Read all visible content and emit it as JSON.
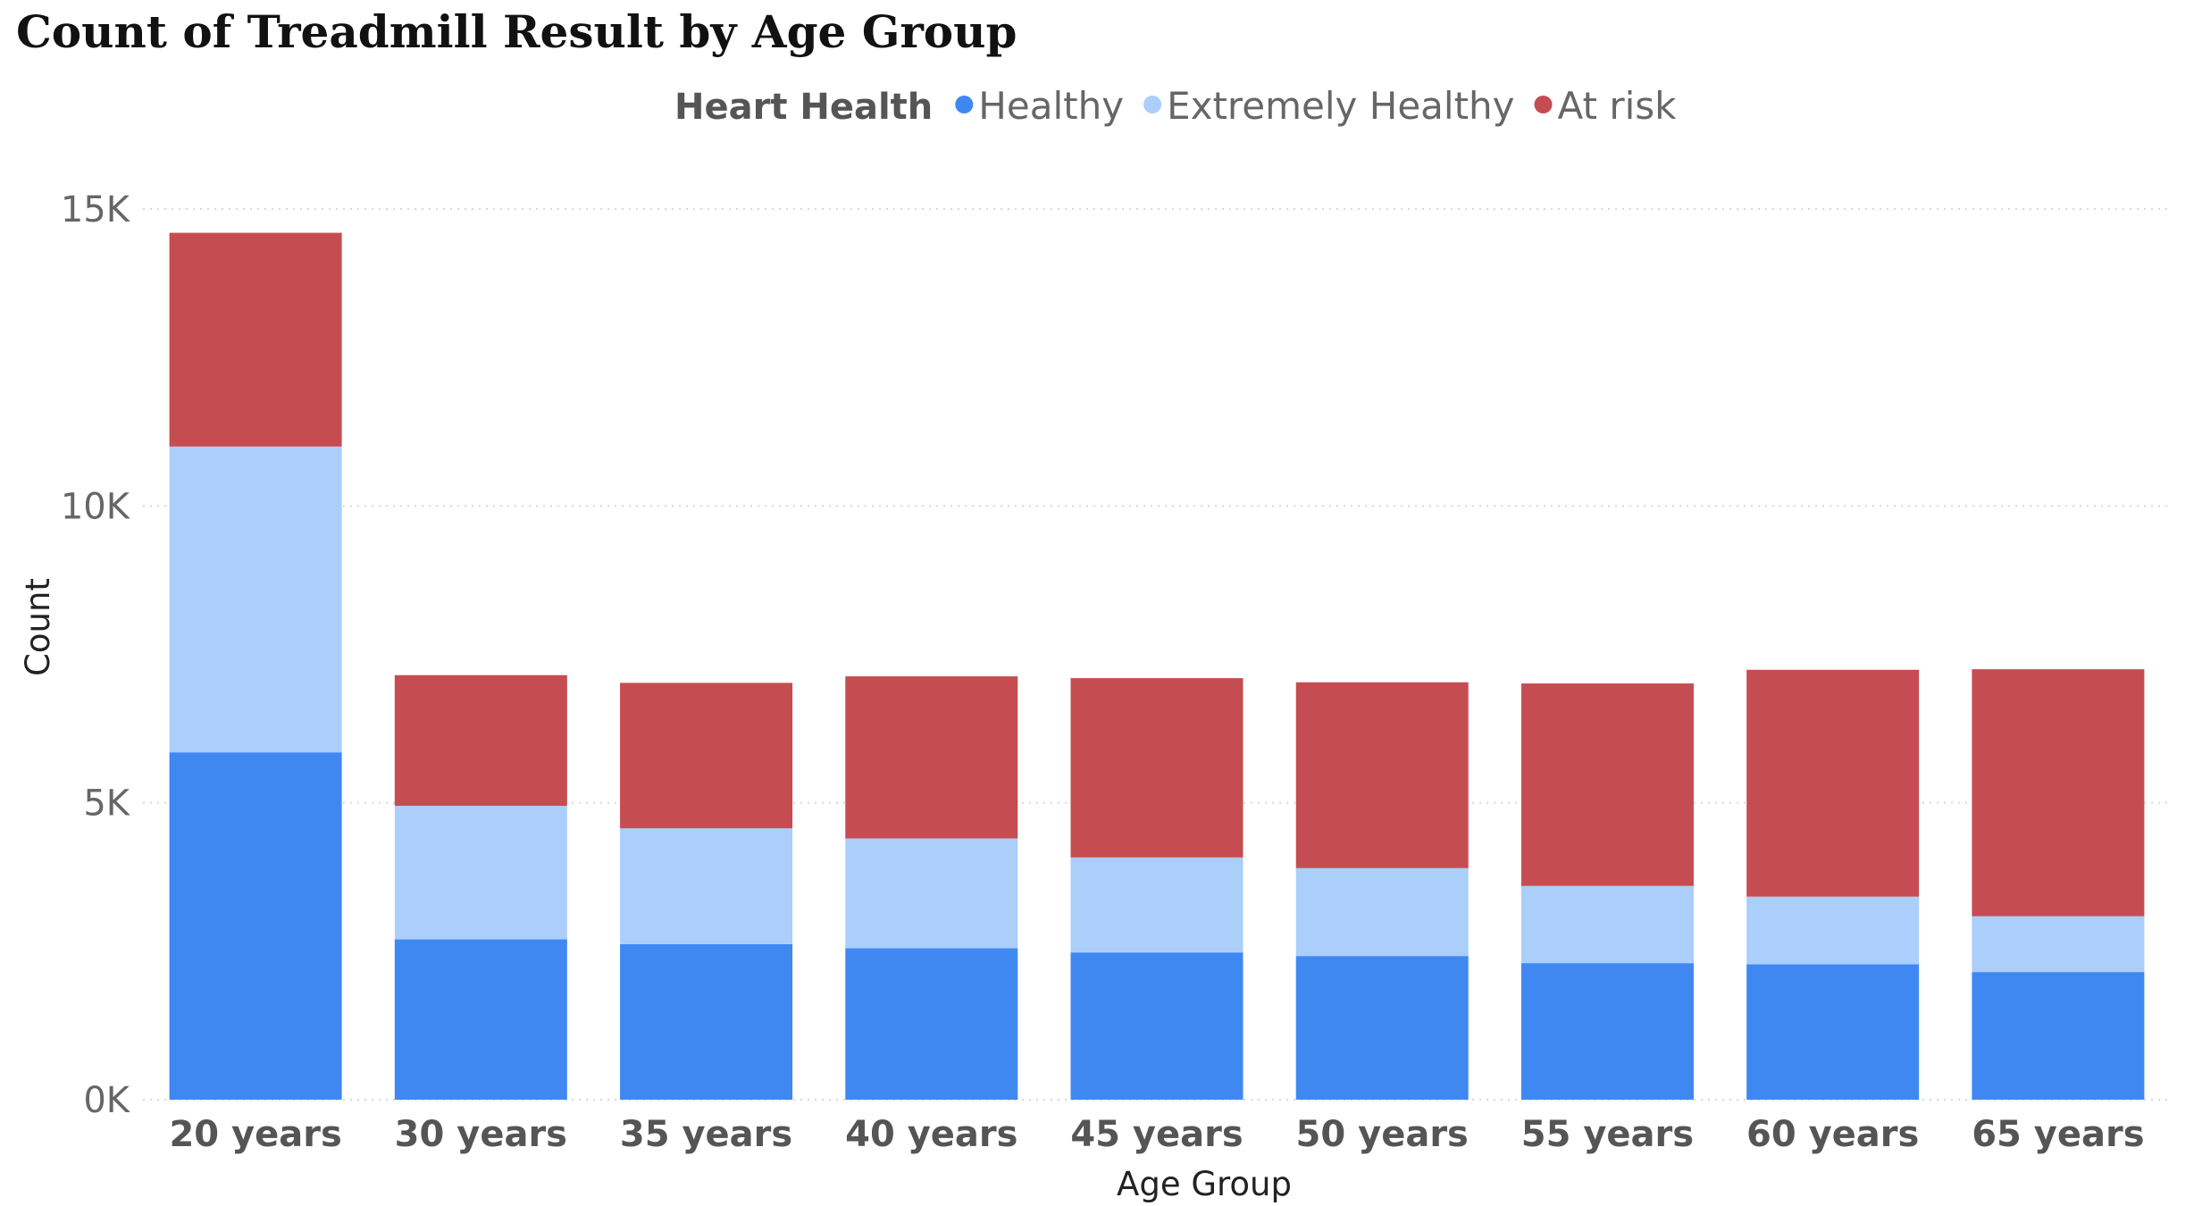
{
  "chart_data": {
    "type": "bar",
    "stacked": true,
    "title": "Count of Treadmill Result by Age Group",
    "xlabel": "Age Group",
    "ylabel": "Count",
    "ylim": [
      0,
      15000
    ],
    "yticks": [
      0,
      5000,
      10000,
      15000
    ],
    "ytick_labels": [
      "0K",
      "5K",
      "10K",
      "15K"
    ],
    "grid": true,
    "legend": {
      "title": "Heart Health",
      "position": "top-center"
    },
    "categories": [
      "20 years",
      "30 years",
      "35 years",
      "40 years",
      "45 years",
      "50 years",
      "55 years",
      "60 years",
      "65 years"
    ],
    "series": [
      {
        "name": "Healthy",
        "color": "#3f88f2",
        "values": [
          5850,
          2700,
          2620,
          2550,
          2480,
          2420,
          2300,
          2280,
          2150
        ]
      },
      {
        "name": "Extremely Healthy",
        "color": "#abcefa",
        "values": [
          5150,
          2250,
          1950,
          1850,
          1600,
          1480,
          1300,
          1140,
          940
        ]
      },
      {
        "name": "At risk",
        "color": "#c54d51",
        "values": [
          3600,
          2200,
          2450,
          2730,
          3020,
          3130,
          3410,
          3820,
          4160
        ]
      }
    ]
  }
}
